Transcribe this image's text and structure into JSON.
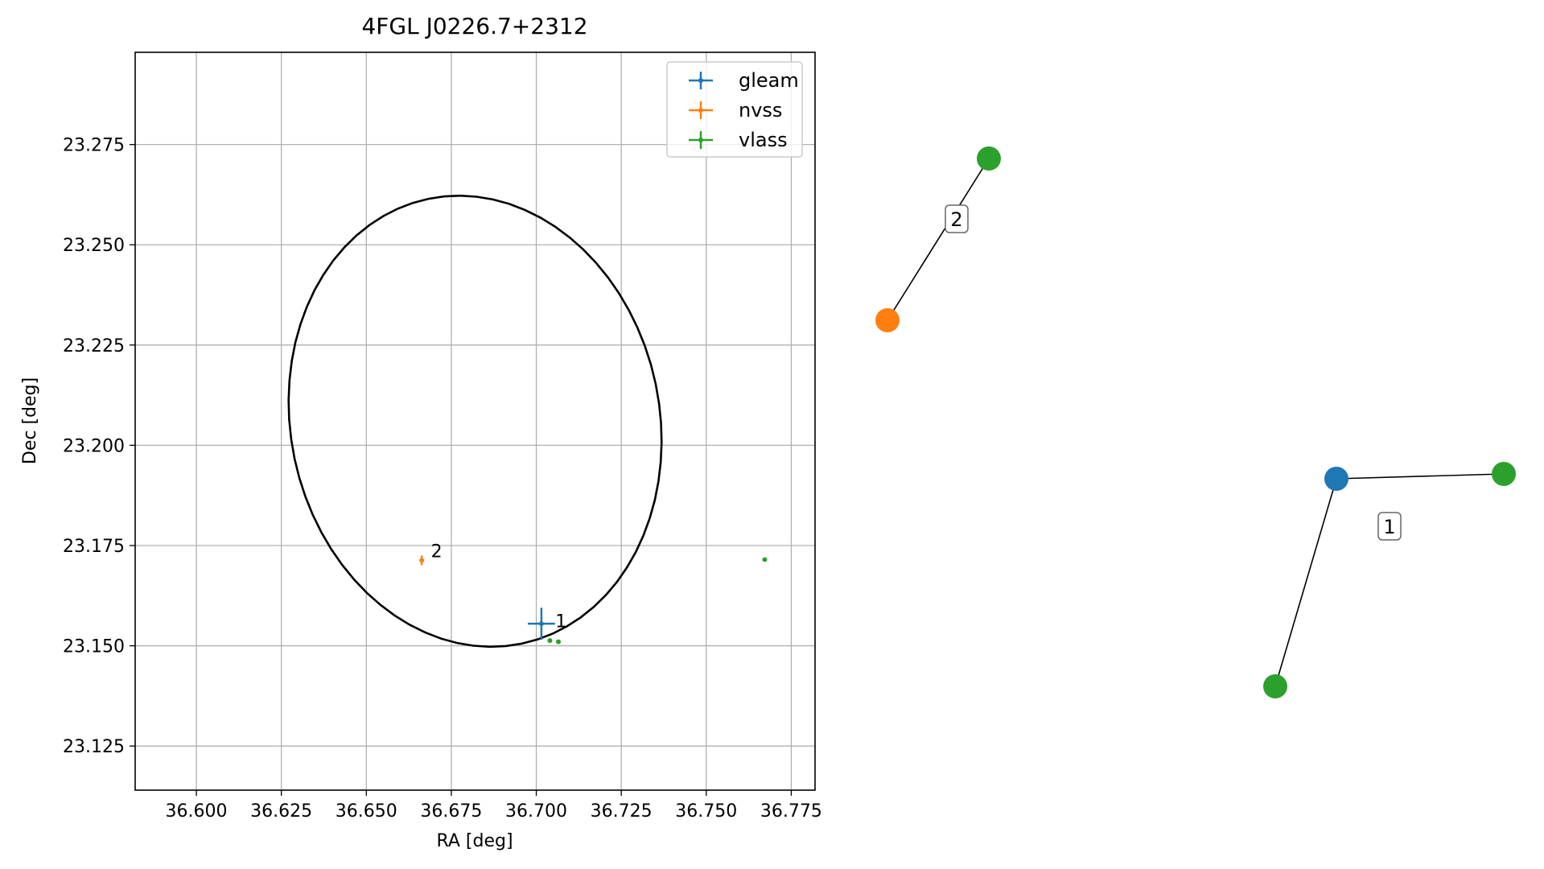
{
  "chart_data": {
    "type": "scatter",
    "title": "4FGL J0226.7+2312",
    "xlabel": "RA [deg]",
    "ylabel": "Dec [deg]",
    "xlim": [
      36.582,
      36.782
    ],
    "ylim": [
      23.114,
      23.298
    ],
    "xticks": [
      "36.600",
      "36.625",
      "36.650",
      "36.675",
      "36.700",
      "36.725",
      "36.750",
      "36.775"
    ],
    "yticks": [
      "23.125",
      "23.150",
      "23.175",
      "23.200",
      "23.225",
      "23.250",
      "23.275"
    ],
    "grid": true,
    "legend_position": "top-right",
    "series": [
      {
        "name": "gleam",
        "color": "#1f77b4",
        "points": [
          {
            "x": 36.7015,
            "y": 23.1555,
            "xerr": 0.004,
            "yerr": 0.004
          }
        ]
      },
      {
        "name": "nvss",
        "color": "#ff7f0e",
        "points": [
          {
            "x": 36.6663,
            "y": 23.1713,
            "xerr": 0.0003,
            "yerr": 0.0012
          }
        ]
      },
      {
        "name": "vlass",
        "color": "#2ca02c",
        "points": [
          {
            "x": 36.7672,
            "y": 23.1715,
            "xerr": 0.0004,
            "yerr": 0.0004
          },
          {
            "x": 36.704,
            "y": 23.1513,
            "xerr": 0.0005,
            "yerr": 0.0003
          },
          {
            "x": 36.7065,
            "y": 23.151,
            "xerr": 0.0005,
            "yerr": 0.0003
          }
        ]
      }
    ],
    "ellipse": {
      "center_x": 36.682,
      "center_y": 23.206,
      "semi_major": 0.058,
      "semi_minor": 0.053,
      "angle_deg": 37,
      "color": "#000000"
    },
    "annotations": [
      {
        "text": "1",
        "x": 36.7056,
        "y": 23.1562
      },
      {
        "text": "2",
        "x": 36.669,
        "y": 23.1737
      }
    ]
  },
  "graph": {
    "components": [
      {
        "label": "2",
        "nodes": [
          {
            "color": "#ff7f0e"
          },
          {
            "color": "#2ca02c"
          }
        ]
      },
      {
        "label": "1",
        "nodes": [
          {
            "color": "#1f77b4"
          },
          {
            "color": "#2ca02c"
          },
          {
            "color": "#2ca02c"
          }
        ]
      }
    ]
  }
}
